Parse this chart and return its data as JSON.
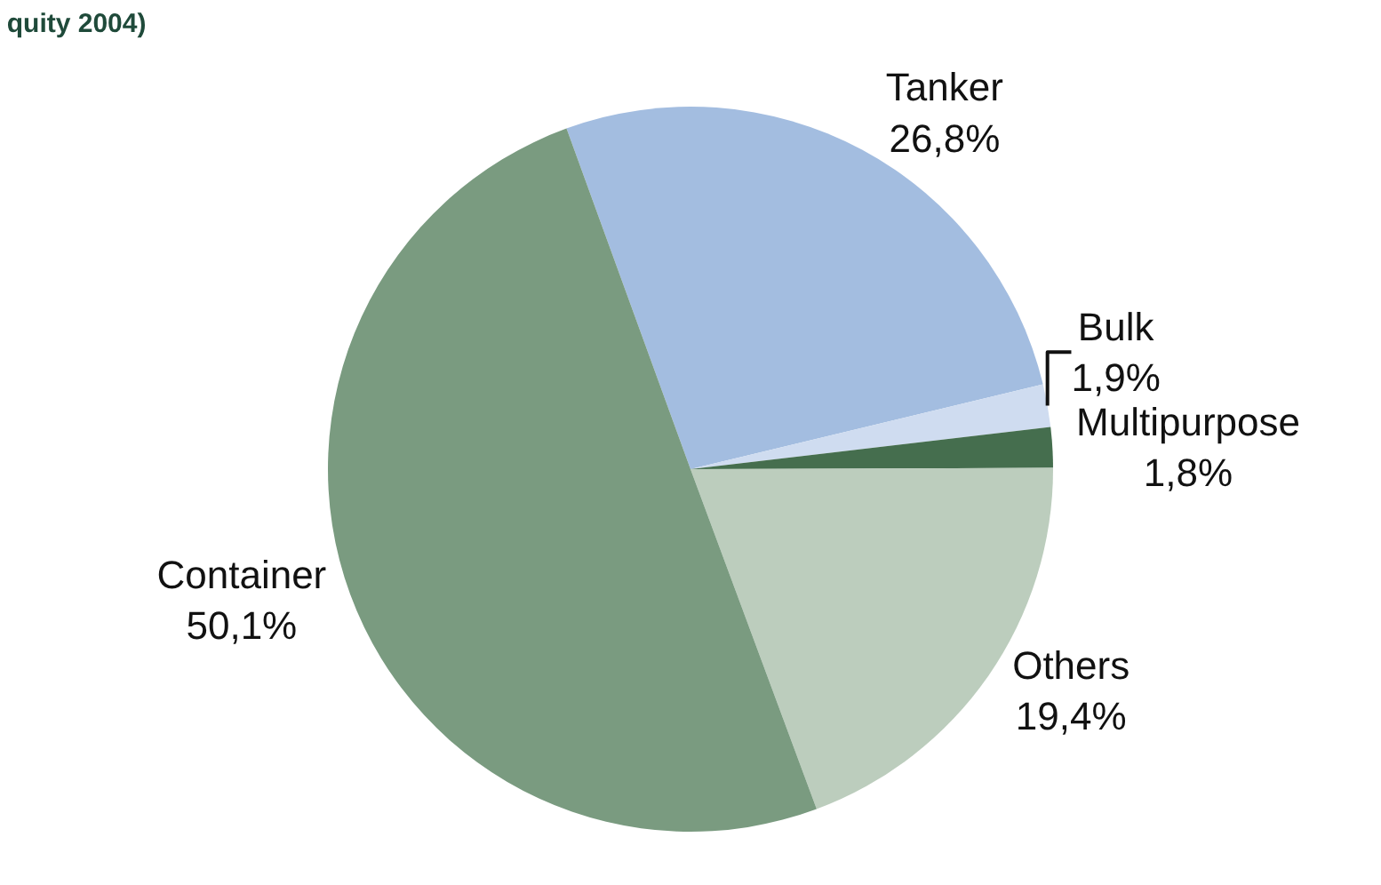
{
  "chart_data": {
    "type": "pie",
    "title": "quity 2004)",
    "categories": [
      "Tanker",
      "Bulk",
      "Multipurpose",
      "Others",
      "Container"
    ],
    "values": [
      26.8,
      1.9,
      1.8,
      19.4,
      50.1
    ],
    "value_labels": [
      "26,8%",
      "1,9%",
      "1,8%",
      "19,4%",
      "50,1%"
    ],
    "colors": [
      "#a3bde0",
      "#cfdcf0",
      "#456e4e",
      "#bccdbd",
      "#7a9b80"
    ],
    "legend": false
  }
}
